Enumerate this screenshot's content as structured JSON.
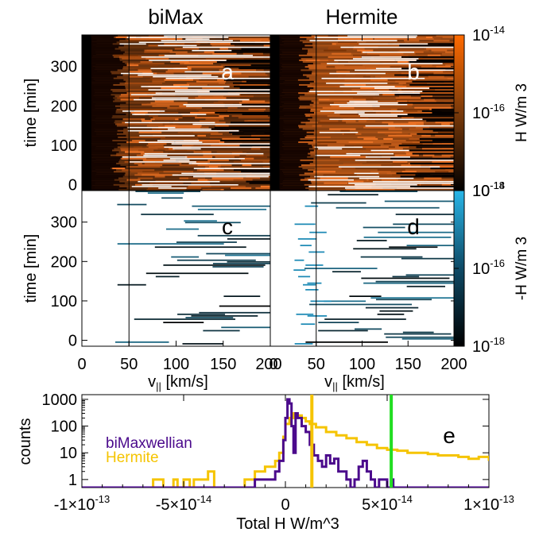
{
  "chart_data": [
    {
      "type": "heatmap",
      "panel": "a",
      "title": "biMax",
      "ylabel": "time [min]",
      "xlim": [
        0,
        200
      ],
      "ylim": [
        -15,
        380
      ],
      "yticks": [
        0,
        100,
        200,
        300
      ],
      "ytick_labels": [
        "0",
        "100",
        "200",
        "300"
      ],
      "colormap": "orange (positive H)",
      "vertical_marker_x": 50
    },
    {
      "type": "heatmap",
      "panel": "b",
      "title": "Hermite",
      "xlim": [
        0,
        200
      ],
      "ylim": [
        -15,
        380
      ],
      "colormap": "orange (positive H)",
      "vertical_marker_x": 50,
      "colorbar": {
        "label": "H W/m 3",
        "range": [
          "1e-18",
          "1e-14"
        ],
        "ticks": [
          {
            "value": -14,
            "base": "10",
            "exp": "-14"
          },
          {
            "value": -16,
            "base": "10",
            "exp": "-16"
          },
          {
            "value": -18,
            "base": "10",
            "exp": "-18"
          }
        ],
        "color": "#ff6a00"
      }
    },
    {
      "type": "heatmap",
      "panel": "c",
      "ylabel": "time [min]",
      "xlabel": "v|| [km/s]",
      "xlim": [
        0,
        200
      ],
      "ylim": [
        -15,
        380
      ],
      "xticks": [
        0,
        50,
        100,
        150,
        200
      ],
      "xtick_labels": [
        "0",
        "50",
        "100",
        "150",
        "200"
      ],
      "yticks": [
        0,
        100,
        200,
        300
      ],
      "ytick_labels": [
        "0",
        "100",
        "200",
        "300"
      ],
      "colormap": "blue (negative H)",
      "vertical_marker_x": 50
    },
    {
      "type": "heatmap",
      "panel": "d",
      "xlabel": "v|| [km/s]",
      "xlim": [
        0,
        200
      ],
      "ylim": [
        -15,
        380
      ],
      "xticks": [
        0,
        50,
        100,
        150,
        200
      ],
      "xtick_labels": [
        "0",
        "50",
        "100",
        "150",
        "200"
      ],
      "colormap": "blue (negative H)",
      "vertical_marker_x": 50,
      "colorbar": {
        "label": "-H W/m 3",
        "range": [
          "1e-18",
          "1e-14"
        ],
        "ticks": [
          {
            "value": -14,
            "base": "10",
            "exp": "-14"
          },
          {
            "value": -16,
            "base": "10",
            "exp": "-16"
          },
          {
            "value": -18,
            "base": "10",
            "exp": "-18"
          }
        ],
        "color": "#29b6e8"
      }
    },
    {
      "type": "line",
      "panel": "e",
      "xlabel": "Total H W/m^3",
      "ylabel": "counts",
      "xlim": [
        -1e-13,
        1e-13
      ],
      "ylim": [
        0.5,
        1500
      ],
      "yscale": "log",
      "xticks": [
        {
          "value": -1e-13,
          "mant": "-1",
          "exp": "-13"
        },
        {
          "value": -5e-14,
          "mant": "-5",
          "exp": "-14"
        },
        {
          "value": 0,
          "mant": "0",
          "exp": ""
        },
        {
          "value": 5e-14,
          "mant": "5",
          "exp": "-14"
        },
        {
          "value": 1e-13,
          "mant": "1",
          "exp": "-13"
        }
      ],
      "yticks": [
        {
          "value": 1,
          "label": "1"
        },
        {
          "value": 10,
          "label": "10"
        },
        {
          "value": 100,
          "label": "100"
        },
        {
          "value": 1000,
          "label": "1000"
        }
      ],
      "legend": [
        "biMaxwellian",
        "Hermite"
      ],
      "vertical_lines": [
        {
          "x": 1.3e-14,
          "color": "#f5c400"
        },
        {
          "x": 5.2e-14,
          "color": "#22dd22"
        }
      ],
      "series": [
        {
          "name": "biMaxwellian",
          "color": "#4b0a8c",
          "x": [
            -1e-13,
            -1.7e-14,
            -1.5e-14,
            -1e-14,
            -5e-15,
            -3e-15,
            -1e-15,
            0,
            1e-15,
            2e-15,
            3e-15,
            4e-15,
            5e-15,
            6e-15,
            8e-15,
            1e-14,
            1.2e-14,
            1.4e-14,
            1.6e-14,
            1.8e-14,
            2e-14,
            2.2e-14,
            2.4e-14,
            2.6e-14,
            2.8e-14,
            3e-14,
            3.2e-14,
            3.4e-14,
            3.6e-14,
            3.8e-14,
            4e-14,
            4.2e-14,
            4.4e-14,
            4.6e-14,
            4.8e-14,
            5e-14,
            5.2e-14,
            5.3e-14,
            1e-13
          ],
          "values": [
            0.5,
            0.5,
            1,
            1,
            2,
            5,
            30,
            200,
            1000,
            700,
            100,
            10,
            300,
            200,
            100,
            60,
            20,
            8,
            5,
            3,
            8,
            4,
            6,
            2,
            2,
            1,
            0.5,
            1,
            3,
            5,
            2,
            1,
            0.5,
            1,
            1,
            0.5,
            1,
            0.5,
            0.5
          ]
        },
        {
          "name": "Hermite",
          "color": "#f5c400",
          "x": [
            -1e-13,
            -6.5e-14,
            -6e-14,
            -5.5e-14,
            -5.3e-14,
            -5e-14,
            -4.7e-14,
            -4.5e-14,
            -4.2e-14,
            -3.8e-14,
            -3.5e-14,
            -3.3e-14,
            -2e-14,
            -1.5e-14,
            -1e-14,
            -5e-15,
            -3e-15,
            -1e-15,
            0,
            2e-15,
            4e-15,
            6e-15,
            8e-15,
            1e-14,
            1.2e-14,
            1.5e-14,
            2e-14,
            2.5e-14,
            3e-14,
            3.5e-14,
            4e-14,
            4.5e-14,
            5e-14,
            5.5e-14,
            6e-14,
            6.5e-14,
            7e-14,
            7.5e-14,
            8e-14,
            8.5e-14,
            9e-14,
            9.5e-14,
            1e-13
          ],
          "values": [
            0.5,
            1,
            0.5,
            1,
            0.5,
            1,
            0.5,
            1,
            1,
            2,
            0.5,
            0.5,
            1,
            2,
            3,
            5,
            10,
            40,
            120,
            200,
            300,
            250,
            200,
            150,
            120,
            90,
            60,
            45,
            35,
            25,
            20,
            15,
            13,
            12,
            10,
            10,
            9,
            8,
            8,
            7,
            6,
            7,
            5
          ]
        }
      ]
    }
  ]
}
